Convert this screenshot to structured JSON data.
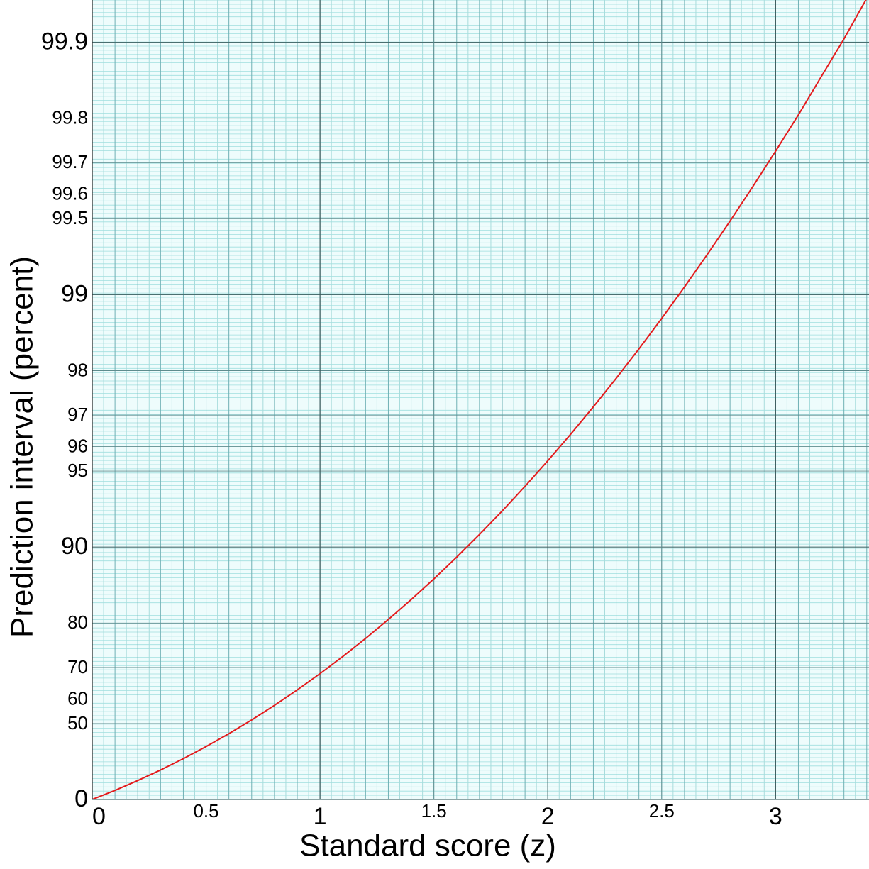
{
  "chart_data": {
    "type": "line",
    "x_label": "Standard score (z)",
    "y_label": "Prediction interval (percent)",
    "y_scale": "probability",
    "x": [
      0,
      0.1,
      0.2,
      0.3,
      0.4,
      0.5,
      0.6,
      0.7,
      0.8,
      0.9,
      1.0,
      1.1,
      1.2,
      1.3,
      1.4,
      1.5,
      1.6,
      1.7,
      1.8,
      1.9,
      2.0,
      2.1,
      2.2,
      2.3,
      2.4,
      2.5,
      2.6,
      2.7,
      2.8,
      2.9,
      3.0,
      3.1,
      3.2,
      3.3,
      3.4
    ],
    "series": [
      {
        "color": "#e41a1c",
        "values": [
          0,
          7.966,
          15.852,
          23.582,
          31.084,
          38.292,
          45.149,
          51.607,
          57.629,
          63.188,
          68.269,
          72.867,
          76.986,
          80.64,
          83.849,
          86.639,
          89.04,
          91.087,
          92.814,
          94.257,
          95.45,
          96.427,
          97.219,
          97.855,
          98.36,
          98.758,
          99.068,
          99.307,
          99.489,
          99.627,
          99.73,
          99.806,
          99.863,
          99.903,
          99.933
        ]
      }
    ],
    "xlim": [
      0,
      3.41
    ],
    "ylim": [
      0,
      99.932
    ],
    "xticks": [
      0,
      0.5,
      1,
      1.5,
      2,
      2.5,
      3
    ],
    "yticks": [
      0,
      50,
      60,
      70,
      80,
      90,
      95,
      96,
      97,
      98,
      99,
      99.5,
      99.6,
      99.7,
      99.8,
      99.9
    ],
    "grid": true
  }
}
